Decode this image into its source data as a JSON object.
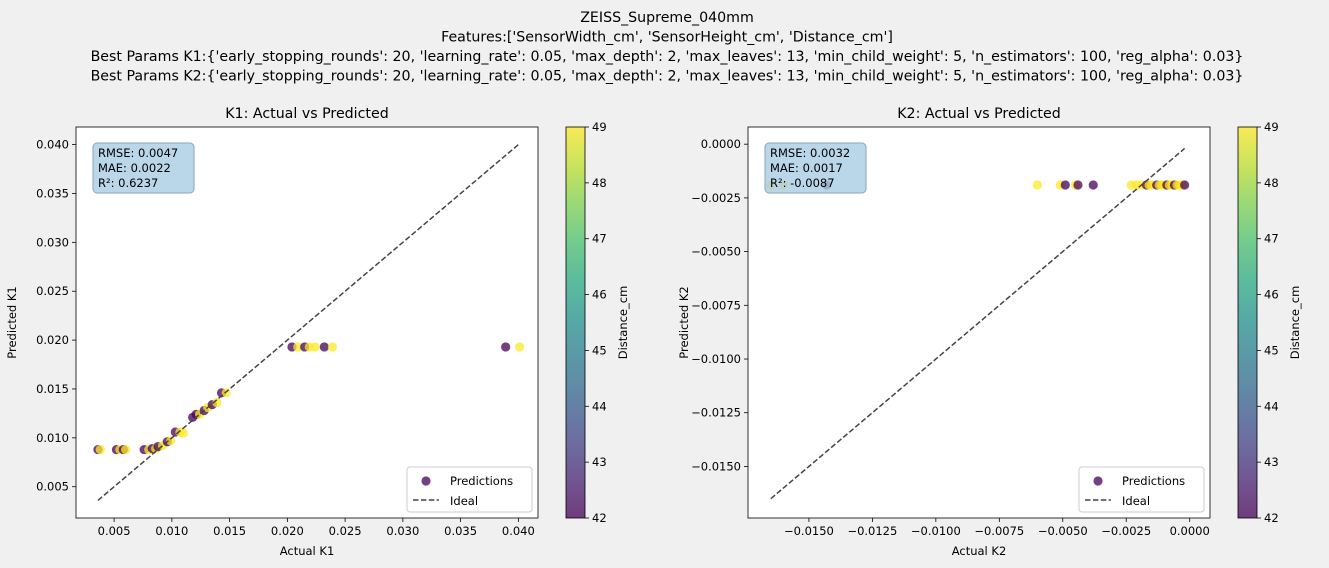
{
  "figure": {
    "title_lines": [
      "ZEISS_Supreme_040mm",
      "Features:['SensorWidth_cm', 'SensorHeight_cm', 'Distance_cm']",
      "Best Params K1:{'early_stopping_rounds': 20, 'learning_rate': 0.05, 'max_depth': 2, 'max_leaves': 13, 'min_child_weight': 5, 'n_estimators': 100, 'reg_alpha': 0.03}",
      "Best Params K2:{'early_stopping_rounds': 20, 'learning_rate': 0.05, 'max_depth': 2, 'max_leaves': 13, 'min_child_weight': 5, 'n_estimators': 100, 'reg_alpha': 0.03}"
    ],
    "background": "#f0f0f0"
  },
  "chart_data": [
    {
      "type": "scatter",
      "title": "K1: Actual vs Predicted",
      "xlabel": "Actual K1",
      "ylabel": "Predicted K1",
      "xlim": [
        0.0017,
        0.0417
      ],
      "ylim": [
        0.0018,
        0.0418
      ],
      "xticks": [
        0.005,
        0.01,
        0.015,
        0.02,
        0.025,
        0.03,
        0.035,
        0.04
      ],
      "xtick_labels": [
        "0.005",
        "0.010",
        "0.015",
        "0.020",
        "0.025",
        "0.030",
        "0.035",
        "0.040"
      ],
      "yticks": [
        0.005,
        0.01,
        0.015,
        0.02,
        0.025,
        0.03,
        0.035,
        0.04
      ],
      "ytick_labels": [
        "0.005",
        "0.010",
        "0.015",
        "0.020",
        "0.025",
        "0.030",
        "0.035",
        "0.040"
      ],
      "grid": false,
      "metrics": [
        "RMSE: 0.0047",
        "MAE: 0.0022",
        "R²: 0.6237"
      ],
      "legend": {
        "position": "lower right",
        "entries": [
          "Predictions",
          "Ideal"
        ]
      },
      "ideal_line": {
        "x": [
          0.0036,
          0.04
        ],
        "y": [
          0.0036,
          0.04
        ]
      },
      "colorbar": {
        "label": "Distance_cm",
        "range": [
          42,
          49
        ],
        "ticks": [
          42,
          43,
          44,
          45,
          46,
          47,
          48,
          49
        ],
        "tick_labels": [
          "42",
          "43",
          "44",
          "45",
          "46",
          "47",
          "48",
          "49"
        ]
      },
      "series": [
        {
          "name": "Predictions",
          "x": [
            0.0036,
            0.0038,
            0.0052,
            0.0055,
            0.0058,
            0.006,
            0.0076,
            0.008,
            0.0083,
            0.0086,
            0.0088,
            0.0092,
            0.0096,
            0.0099,
            0.0103,
            0.0107,
            0.011,
            0.0118,
            0.0121,
            0.0124,
            0.0128,
            0.0131,
            0.0135,
            0.0139,
            0.0143,
            0.0147,
            0.0204,
            0.0209,
            0.0215,
            0.0219,
            0.0224,
            0.0232,
            0.0239,
            0.0389,
            0.0401
          ],
          "y": [
            0.0088,
            0.0088,
            0.0088,
            0.0088,
            0.0088,
            0.0088,
            0.0088,
            0.0088,
            0.0089,
            0.0089,
            0.0091,
            0.0092,
            0.0096,
            0.0097,
            0.0106,
            0.0106,
            0.0105,
            0.0121,
            0.0124,
            0.0124,
            0.0128,
            0.0131,
            0.0134,
            0.0136,
            0.0146,
            0.0146,
            0.0193,
            0.0193,
            0.0193,
            0.0193,
            0.0193,
            0.0193,
            0.0193,
            0.0193,
            0.0193
          ],
          "distance_cm": [
            42,
            49,
            42,
            49,
            42,
            49,
            42,
            49,
            42,
            49,
            42,
            49,
            42,
            49,
            42,
            49,
            49,
            42,
            42,
            49,
            42,
            49,
            42,
            49,
            42,
            49,
            42,
            49,
            42,
            49,
            49,
            42,
            49,
            42,
            49
          ]
        }
      ]
    },
    {
      "type": "scatter",
      "title": "K2: Actual vs Predicted",
      "xlabel": "Actual K2",
      "ylabel": "Predicted K2",
      "xlim": [
        -0.0174,
        0.0008
      ],
      "ylim": [
        -0.0174,
        0.0008
      ],
      "xticks": [
        -0.015,
        -0.0125,
        -0.01,
        -0.0075,
        -0.005,
        -0.0025,
        0.0
      ],
      "xtick_labels": [
        "−0.0150",
        "−0.0125",
        "−0.0100",
        "−0.0075",
        "−0.0050",
        "−0.0025",
        "0.0000"
      ],
      "yticks": [
        0.0,
        -0.0025,
        -0.005,
        -0.0075,
        -0.01,
        -0.0125,
        -0.015
      ],
      "ytick_labels": [
        "0.0000",
        "−0.0025",
        "−0.0050",
        "−0.0075",
        "−0.0100",
        "−0.0125",
        "−0.0150"
      ],
      "grid": false,
      "metrics": [
        "RMSE: 0.0032",
        "MAE: 0.0017",
        "R²: -0.0087"
      ],
      "legend": {
        "position": "lower right",
        "entries": [
          "Predictions",
          "Ideal"
        ]
      },
      "ideal_line": {
        "x": [
          -0.0165,
          -0.0002
        ],
        "y": [
          -0.0165,
          -0.0002
        ]
      },
      "colorbar": {
        "label": "Distance_cm",
        "range": [
          42,
          49
        ],
        "ticks": [
          42,
          43,
          44,
          45,
          46,
          47,
          48,
          49
        ],
        "tick_labels": [
          "42",
          "43",
          "44",
          "45",
          "46",
          "47",
          "48",
          "49"
        ]
      },
      "series": [
        {
          "name": "Predictions",
          "x": [
            -0.0165,
            -0.016,
            -0.0143,
            -0.006,
            -0.0051,
            -0.0049,
            -0.0045,
            -0.0044,
            -0.0038,
            -0.0023,
            -0.0021,
            -0.0019,
            -0.0017,
            -0.0016,
            -0.0015,
            -0.0013,
            -0.0012,
            -0.0011,
            -0.001,
            -0.0009,
            -0.0008,
            -0.0007,
            -0.0006,
            -0.0005,
            -0.0004,
            -0.0003,
            -0.0002
          ],
          "y": [
            -0.0019,
            -0.0019,
            -0.0019,
            -0.0019,
            -0.0019,
            -0.0019,
            -0.0019,
            -0.0019,
            -0.0019,
            -0.0019,
            -0.0019,
            -0.0019,
            -0.0019,
            -0.0019,
            -0.0019,
            -0.0019,
            -0.0019,
            -0.0019,
            -0.0019,
            -0.0019,
            -0.0019,
            -0.0019,
            -0.0019,
            -0.0019,
            -0.0019,
            -0.0019,
            -0.0019
          ],
          "distance_cm": [
            49,
            49,
            42,
            49,
            49,
            42,
            49,
            42,
            42,
            49,
            49,
            49,
            42,
            49,
            49,
            42,
            49,
            49,
            49,
            42,
            49,
            49,
            42,
            49,
            49,
            49,
            42
          ]
        }
      ]
    }
  ]
}
